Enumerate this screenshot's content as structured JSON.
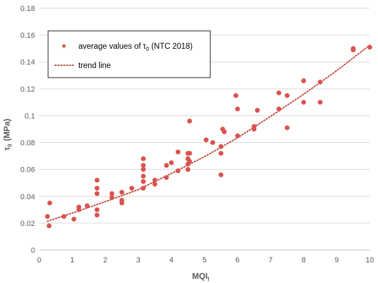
{
  "chart_data": {
    "type": "scatter",
    "xlabel": "MQI",
    "xlabel_sub": "I",
    "ylabel": "τ",
    "ylabel_sub": "0",
    "ylabel_unit": "(MPa)",
    "xlim": [
      0,
      10
    ],
    "ylim": [
      0,
      0.18
    ],
    "x_ticks": [
      "0",
      "1",
      "2",
      "3",
      "4",
      "5",
      "6",
      "7",
      "8",
      "9",
      "10"
    ],
    "y_ticks": [
      "0",
      "0.02",
      "0.04",
      "0.06",
      "0.08",
      "0.1",
      "0.12",
      "0.14",
      "0.16",
      "0.18"
    ],
    "grid": true,
    "legend_position": "top-left",
    "legend": [
      {
        "kind": "marker",
        "label_prefix": "average values of τ",
        "label_sub": "0",
        "label_suffix": " (NTC 2018)"
      },
      {
        "kind": "line",
        "label": "trend line"
      }
    ],
    "series": [
      {
        "kind": "scatter",
        "color": "#d9534f",
        "points": [
          [
            0.25,
            0.025
          ],
          [
            0.3,
            0.018
          ],
          [
            0.32,
            0.035
          ],
          [
            0.75,
            0.025
          ],
          [
            1.05,
            0.023
          ],
          [
            1.2,
            0.032
          ],
          [
            1.2,
            0.03
          ],
          [
            1.45,
            0.033
          ],
          [
            1.75,
            0.052
          ],
          [
            1.75,
            0.046
          ],
          [
            1.75,
            0.042
          ],
          [
            1.75,
            0.03
          ],
          [
            1.75,
            0.026
          ],
          [
            2.2,
            0.042
          ],
          [
            2.2,
            0.039
          ],
          [
            2.5,
            0.043
          ],
          [
            2.5,
            0.037
          ],
          [
            2.5,
            0.035
          ],
          [
            2.8,
            0.046
          ],
          [
            3.15,
            0.068
          ],
          [
            3.15,
            0.063
          ],
          [
            3.15,
            0.06
          ],
          [
            3.15,
            0.055
          ],
          [
            3.15,
            0.051
          ],
          [
            3.15,
            0.046
          ],
          [
            3.5,
            0.052
          ],
          [
            3.5,
            0.049
          ],
          [
            3.85,
            0.063
          ],
          [
            3.85,
            0.054
          ],
          [
            4.0,
            0.065
          ],
          [
            4.2,
            0.073
          ],
          [
            4.2,
            0.059
          ],
          [
            4.5,
            0.072
          ],
          [
            4.5,
            0.068
          ],
          [
            4.5,
            0.064
          ],
          [
            4.5,
            0.06
          ],
          [
            4.55,
            0.096
          ],
          [
            4.55,
            0.072
          ],
          [
            4.55,
            0.066
          ],
          [
            5.05,
            0.082
          ],
          [
            5.25,
            0.08
          ],
          [
            5.5,
            0.077
          ],
          [
            5.5,
            0.072
          ],
          [
            5.5,
            0.056
          ],
          [
            5.55,
            0.09
          ],
          [
            5.6,
            0.088
          ],
          [
            5.95,
            0.115
          ],
          [
            6.0,
            0.105
          ],
          [
            6.0,
            0.085
          ],
          [
            6.5,
            0.092
          ],
          [
            6.5,
            0.09
          ],
          [
            6.6,
            0.104
          ],
          [
            7.25,
            0.117
          ],
          [
            7.25,
            0.105
          ],
          [
            7.5,
            0.115
          ],
          [
            7.5,
            0.091
          ],
          [
            8.0,
            0.126
          ],
          [
            8.0,
            0.11
          ],
          [
            8.5,
            0.125
          ],
          [
            8.5,
            0.11
          ],
          [
            9.5,
            0.15
          ],
          [
            9.5,
            0.149
          ],
          [
            10.0,
            0.151
          ]
        ]
      },
      {
        "kind": "trend",
        "style": "dotted",
        "color": "#c0392b",
        "points": [
          [
            0.25,
            0.0215
          ],
          [
            1,
            0.0275
          ],
          [
            2,
            0.036
          ],
          [
            3,
            0.045
          ],
          [
            4,
            0.057
          ],
          [
            5,
            0.0695
          ],
          [
            6,
            0.0835
          ],
          [
            7,
            0.0995
          ],
          [
            8,
            0.116
          ],
          [
            9,
            0.1335
          ],
          [
            10,
            0.1525
          ]
        ]
      }
    ]
  }
}
